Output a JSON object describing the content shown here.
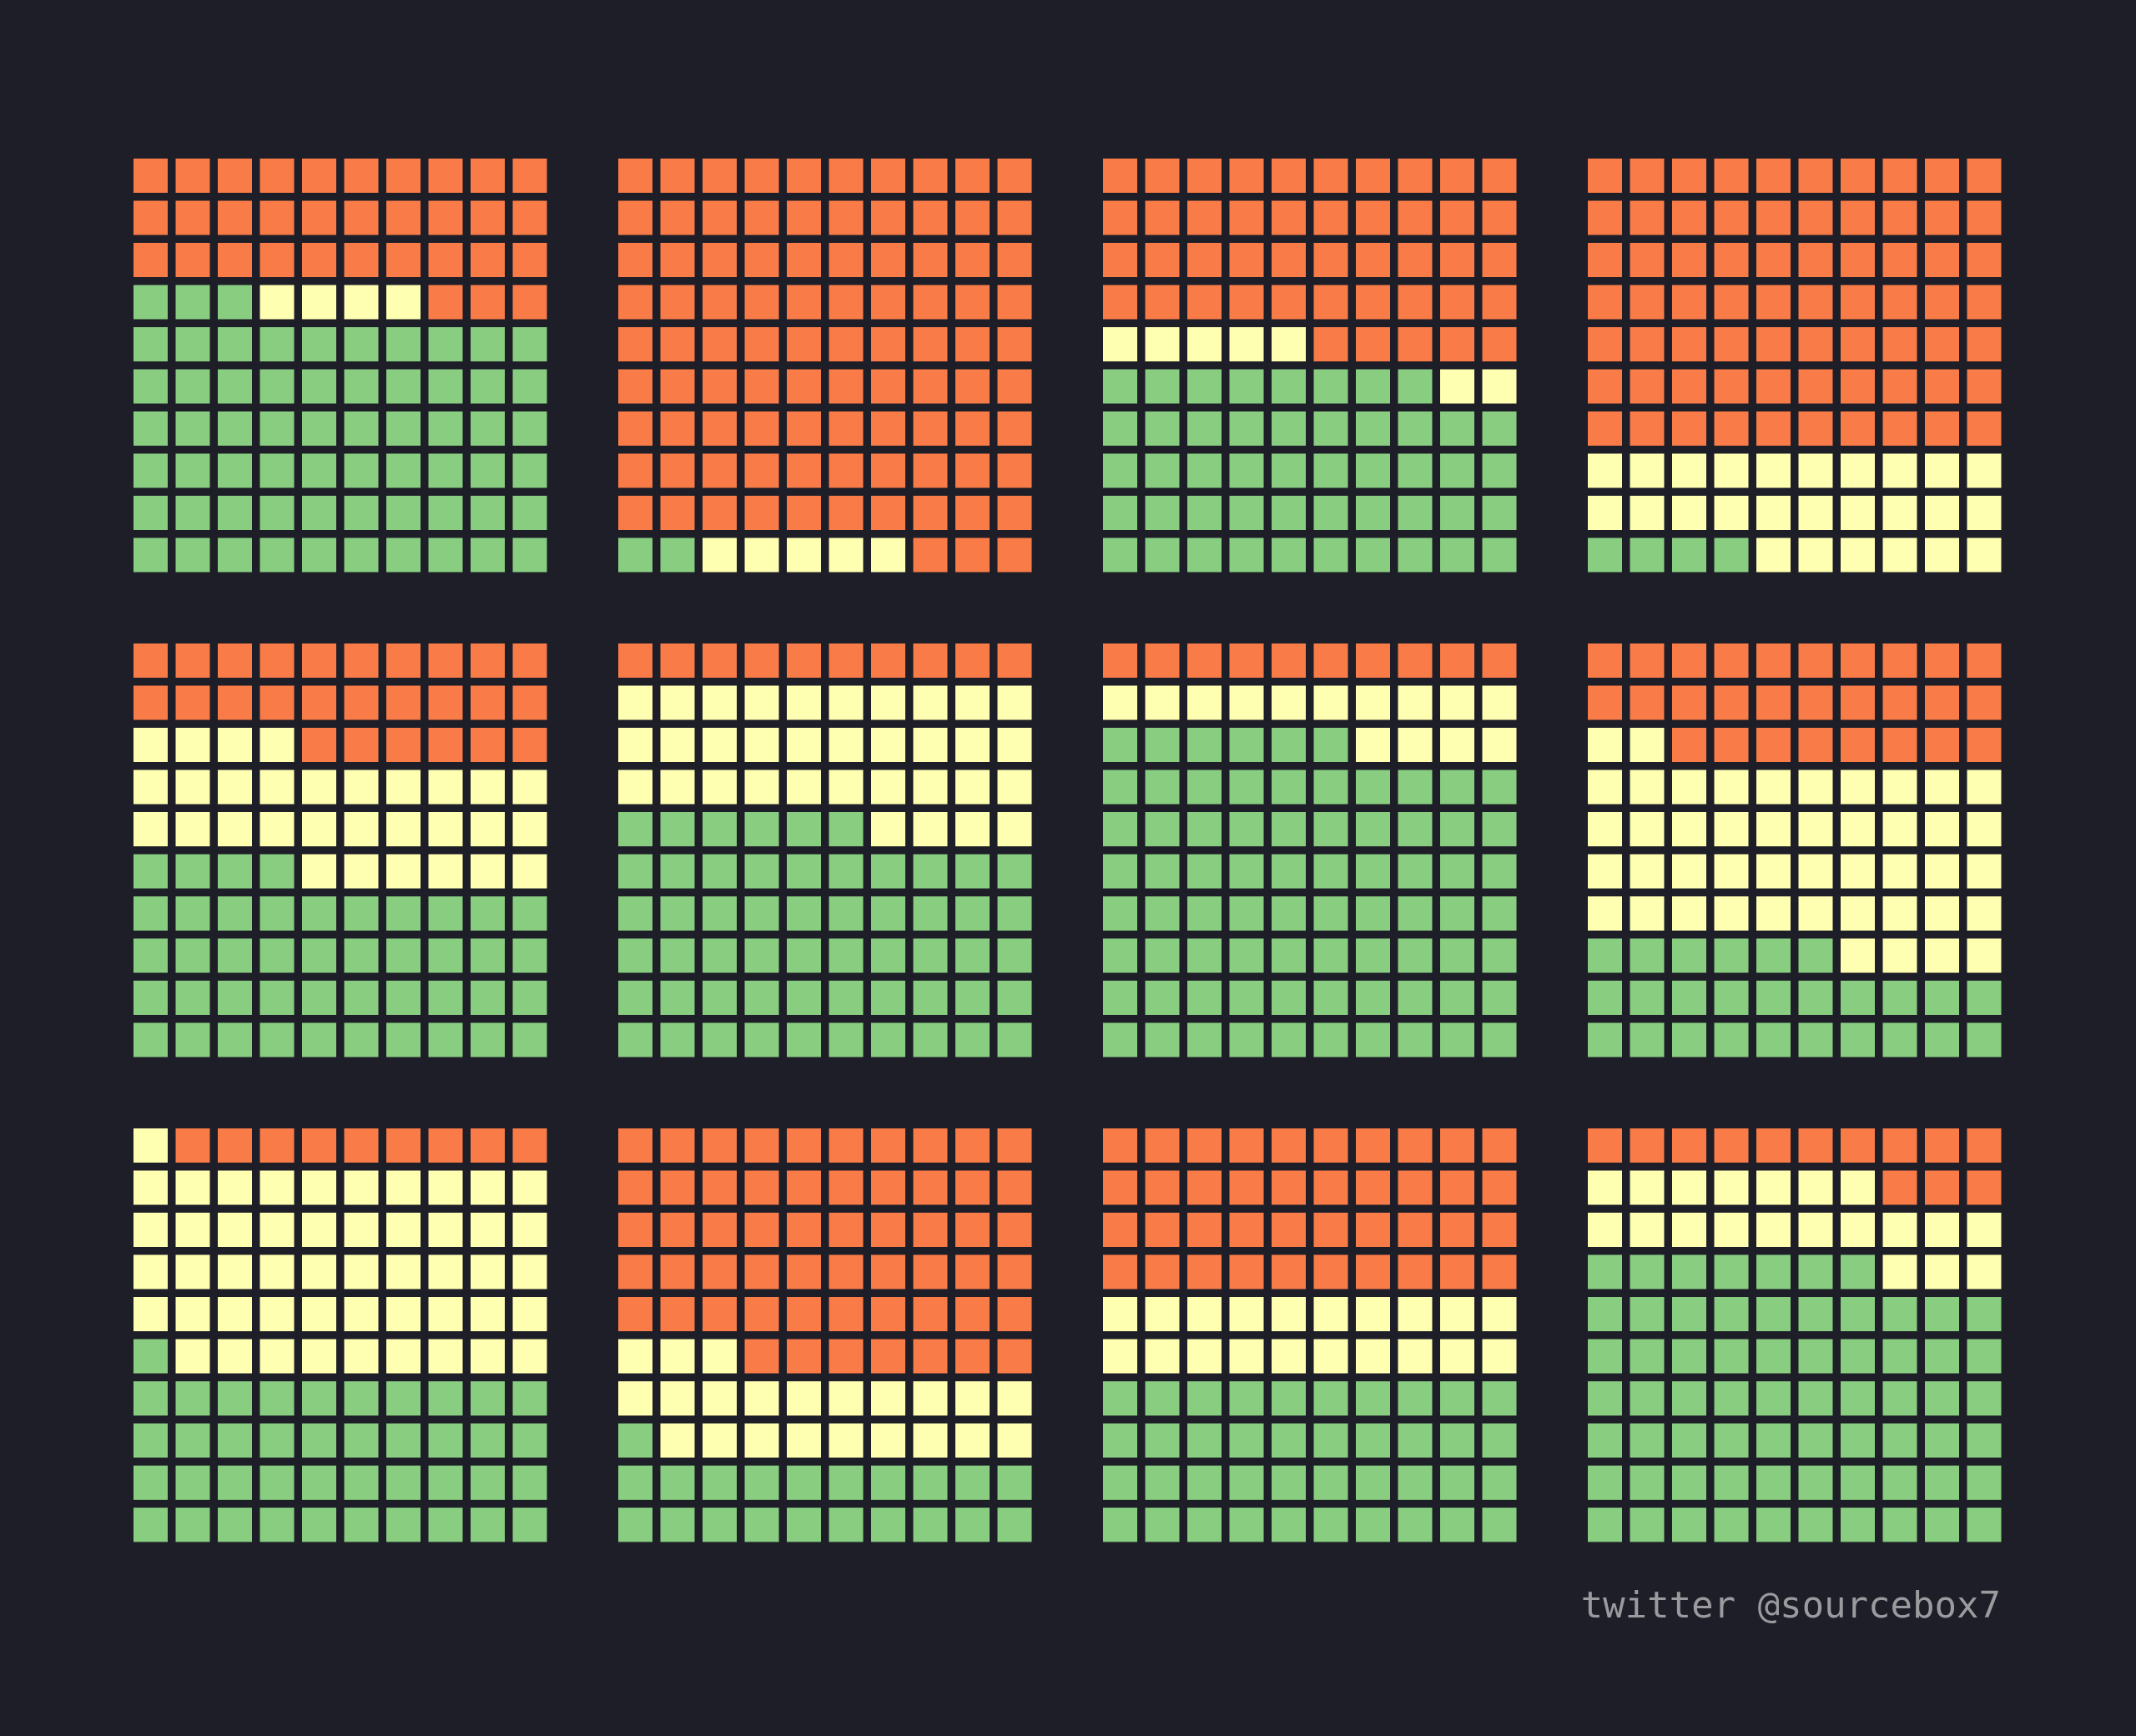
{
  "colors": {
    "background": "#1e1e28",
    "orange": "#f97b47",
    "yellow": "#ffffb2",
    "green": "#88cd80",
    "credit_text": "#9a9a9f"
  },
  "credit": {
    "text": "twitter @sourcebox7"
  },
  "chart_data": {
    "type": "waffle",
    "grid": {
      "rows": 3,
      "cols": 4,
      "cells_per_side": 10,
      "fill_order": "bottom-up, left-to-right"
    },
    "category_colors": {
      "green": "#88cd80",
      "yellow": "#ffffb2",
      "orange": "#f97b47"
    },
    "panels": [
      {
        "green": 63,
        "yellow": 4,
        "orange": 33
      },
      {
        "green": 2,
        "yellow": 5,
        "orange": 93
      },
      {
        "green": 48,
        "yellow": 7,
        "orange": 45
      },
      {
        "green": 4,
        "yellow": 26,
        "orange": 70
      },
      {
        "green": 44,
        "yellow": 30,
        "orange": 26
      },
      {
        "green": 56,
        "yellow": 34,
        "orange": 10
      },
      {
        "green": 76,
        "yellow": 14,
        "orange": 10
      },
      {
        "green": 26,
        "yellow": 46,
        "orange": 28
      },
      {
        "green": 41,
        "yellow": 50,
        "orange": 9
      },
      {
        "green": 21,
        "yellow": 22,
        "orange": 57
      },
      {
        "green": 40,
        "yellow": 20,
        "orange": 40
      },
      {
        "green": 67,
        "yellow": 20,
        "orange": 13
      }
    ]
  }
}
